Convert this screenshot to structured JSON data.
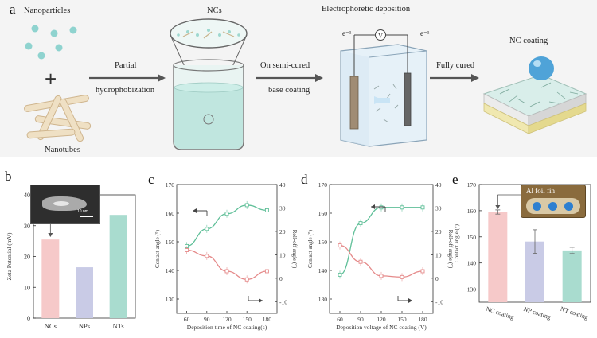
{
  "panel_a": {
    "letter": "a",
    "nanoparticles": "Nanoparticles",
    "plus": "+",
    "nanotubes": "Nanotubes",
    "partial": "Partial",
    "hydrophobization": "hydrophobization",
    "ncs": "NCs",
    "electrophoretic": "Electrophoretic deposition",
    "electrode_left": "e⁻¹",
    "voltmeter": "V",
    "electrode_right": "e⁻¹",
    "on_semi_cured": "On semi-cured",
    "base_coating": "base coating",
    "fully_cured": "Fully cured",
    "nc_coating": "NC coating"
  },
  "panel_b": {
    "letter": "b",
    "scale_bar": "10 nm"
  },
  "panel_c": {
    "letter": "c"
  },
  "panel_d": {
    "letter": "d"
  },
  "panel_e": {
    "letter": "e",
    "inset_label": "Al foil fin"
  },
  "colors": {
    "pink": "#f6c9c9",
    "lavender": "#c9cbe6",
    "teal": "#a9dccf",
    "green_line": "#5fbf98",
    "red_line": "#e58a8a"
  },
  "chart_data": [
    {
      "type": "bar",
      "panel": "b",
      "categories": [
        "NCs",
        "NPs",
        "NTs"
      ],
      "values": [
        25.5,
        16.5,
        33.5
      ],
      "ylabel": "Zeta Potential (mV)",
      "ylim": [
        0,
        40
      ],
      "yticks": [
        0,
        10,
        20,
        30,
        40
      ],
      "colors": [
        "#f6c9c9",
        "#c9cbe6",
        "#a9dccf"
      ]
    },
    {
      "type": "line",
      "panel": "c",
      "x": [
        60,
        90,
        120,
        150,
        180
      ],
      "xlabel": "Deposition time of  NC coating(s)",
      "xticks": [
        60,
        90,
        120,
        150,
        180
      ],
      "series": [
        {
          "axis": "left",
          "values": [
            148.5,
            154.5,
            159.8,
            162.8,
            161.0
          ],
          "color": "#5fbf98"
        },
        {
          "axis": "right",
          "values": [
            12.0,
            9.5,
            3.0,
            -0.5,
            3.0
          ],
          "color": "#e58a8a"
        }
      ],
      "ylabel_left": "Contact angle (°)",
      "ylim_left": [
        125,
        170
      ],
      "yticks_left": [
        130,
        140,
        150,
        160,
        170
      ],
      "ylabel_right": "Roll-off angle (°)",
      "ylim_right": [
        -15,
        40
      ],
      "yticks_right": [
        -10,
        0,
        10,
        20,
        30,
        40
      ]
    },
    {
      "type": "line",
      "panel": "d",
      "x": [
        60,
        90,
        120,
        150,
        180
      ],
      "xlabel": "Deposition voltage of NC coating (V)",
      "xticks": [
        60,
        90,
        120,
        150,
        180
      ],
      "series": [
        {
          "axis": "left",
          "values": [
            138.5,
            156.5,
            162.0,
            162.0,
            162.0
          ],
          "color": "#5fbf98"
        },
        {
          "axis": "right",
          "values": [
            14.0,
            7.0,
            1.0,
            0.5,
            3.0
          ],
          "color": "#e58a8a"
        }
      ],
      "ylabel_left": "Contact angle (°)",
      "ylim_left": [
        125,
        170
      ],
      "yticks_left": [
        130,
        140,
        150,
        160,
        170
      ],
      "ylabel_right": "Roll-off angle (°)",
      "ylim_right": [
        -15,
        40
      ],
      "yticks_right": [
        -10,
        0,
        10,
        20,
        30,
        40
      ]
    },
    {
      "type": "bar",
      "panel": "e",
      "categories": [
        "NC coating",
        "NP coating",
        "NT coating"
      ],
      "values": [
        159.5,
        148.2,
        144.8
      ],
      "errors": [
        0.8,
        4.5,
        1.2
      ],
      "ylabel": "Contact angle (°)",
      "ylim": [
        125,
        170
      ],
      "yticks": [
        130,
        140,
        150,
        160,
        170
      ],
      "colors": [
        "#f6c9c9",
        "#c9cbe6",
        "#a9dccf"
      ]
    }
  ]
}
